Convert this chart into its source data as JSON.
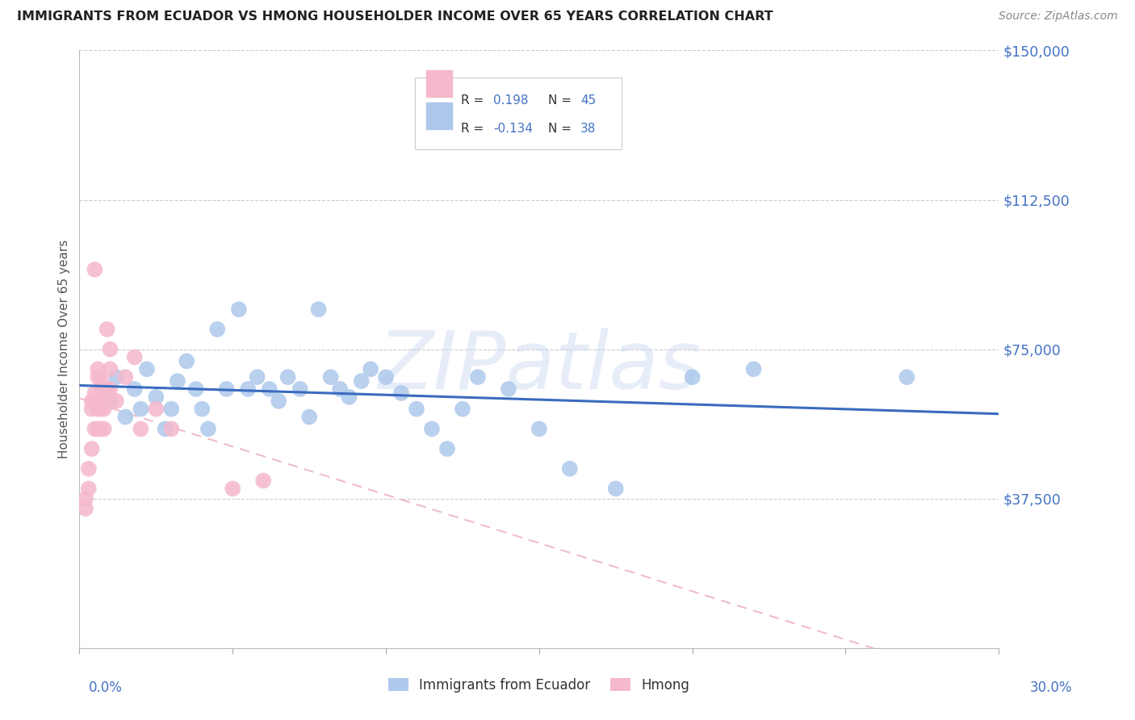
{
  "title": "IMMIGRANTS FROM ECUADOR VS HMONG HOUSEHOLDER INCOME OVER 65 YEARS CORRELATION CHART",
  "source": "Source: ZipAtlas.com",
  "ylabel": "Householder Income Over 65 years",
  "xmin": 0.0,
  "xmax": 0.3,
  "ymin": 0,
  "ymax": 150000,
  "ecuador_R": 0.198,
  "ecuador_N": 45,
  "hmong_R": -0.134,
  "hmong_N": 38,
  "ecuador_color": "#adc8eb",
  "ecuador_line_color": "#3a6bbf",
  "hmong_color": "#f5b8cc",
  "hmong_line_color": "#e8a0b8",
  "watermark": "ZIPatlas",
  "background_color": "#ffffff",
  "grid_color": "#cccccc",
  "ecuador_x": [
    0.008,
    0.01,
    0.012,
    0.015,
    0.018,
    0.02,
    0.022,
    0.025,
    0.028,
    0.03,
    0.032,
    0.035,
    0.038,
    0.04,
    0.042,
    0.045,
    0.048,
    0.052,
    0.055,
    0.058,
    0.062,
    0.065,
    0.068,
    0.072,
    0.075,
    0.078,
    0.082,
    0.085,
    0.088,
    0.092,
    0.095,
    0.1,
    0.105,
    0.11,
    0.115,
    0.12,
    0.125,
    0.13,
    0.14,
    0.15,
    0.16,
    0.175,
    0.2,
    0.22,
    0.27
  ],
  "ecuador_y": [
    65000,
    62000,
    68000,
    58000,
    65000,
    60000,
    70000,
    63000,
    55000,
    60000,
    67000,
    72000,
    65000,
    60000,
    55000,
    80000,
    65000,
    85000,
    65000,
    68000,
    65000,
    62000,
    68000,
    65000,
    58000,
    85000,
    68000,
    65000,
    63000,
    67000,
    70000,
    68000,
    64000,
    60000,
    55000,
    50000,
    60000,
    68000,
    65000,
    55000,
    45000,
    40000,
    68000,
    70000,
    68000
  ],
  "hmong_x": [
    0.002,
    0.002,
    0.003,
    0.003,
    0.004,
    0.004,
    0.004,
    0.005,
    0.005,
    0.005,
    0.005,
    0.006,
    0.006,
    0.006,
    0.006,
    0.007,
    0.007,
    0.007,
    0.007,
    0.007,
    0.008,
    0.008,
    0.008,
    0.008,
    0.009,
    0.009,
    0.009,
    0.01,
    0.01,
    0.01,
    0.012,
    0.015,
    0.018,
    0.02,
    0.025,
    0.03,
    0.05,
    0.06
  ],
  "hmong_y": [
    37500,
    35000,
    40000,
    45000,
    50000,
    60000,
    62000,
    55000,
    62000,
    64000,
    95000,
    68000,
    70000,
    55000,
    60000,
    62000,
    65000,
    67000,
    55000,
    60000,
    62000,
    64000,
    55000,
    60000,
    62000,
    80000,
    65000,
    70000,
    75000,
    65000,
    62000,
    68000,
    73000,
    55000,
    60000,
    55000,
    40000,
    42000
  ]
}
